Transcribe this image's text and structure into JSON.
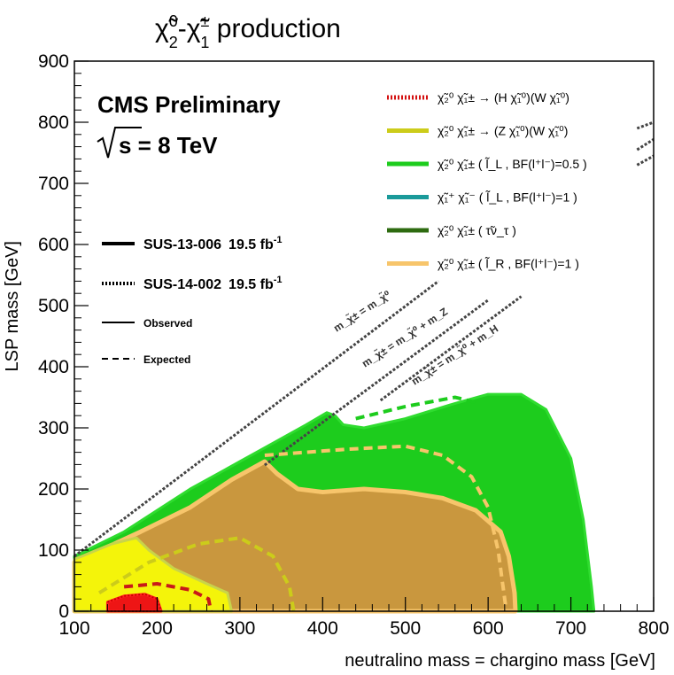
{
  "chart_data": {
    "type": "area",
    "title": "χ̃₂⁰-χ̃₁± production",
    "title_main": "χ̃",
    "title_sup1": "0",
    "title_sub1": "2",
    "title_dash": "-",
    "title_sup2": "±",
    "title_sub2": "1",
    "title_rest": " production",
    "xlabel": "neutralino mass = chargino mass [GeV]",
    "ylabel": "LSP mass [GeV]",
    "xlim": [
      100,
      800
    ],
    "ylim": [
      0,
      900
    ],
    "xticks": [
      100,
      200,
      300,
      400,
      500,
      600,
      700,
      800
    ],
    "yticks": [
      0,
      100,
      200,
      300,
      400,
      500,
      600,
      700,
      800,
      900
    ],
    "grid": false,
    "annotations": {
      "experiment": "CMS Preliminary",
      "energy": "√s = 8 TeV",
      "energy_s": "s = 8 TeV",
      "analyses": [
        {
          "name": "SUS-13-006",
          "lumi": "19.5 fb",
          "lumi_sup": "-1",
          "style": "solid"
        },
        {
          "name": "SUS-14-002",
          "lumi": "19.5 fb",
          "lumi_sup": "-1",
          "style": "dotted"
        }
      ],
      "line_styles": [
        {
          "label": "Observed",
          "style": "solid"
        },
        {
          "label": "Expected",
          "style": "dashed"
        }
      ],
      "diagonals": [
        {
          "label": "m_χ̃± = m_χ̃⁰",
          "offset": 0
        },
        {
          "label": "m_χ̃± = m_χ̃⁰ + m_Z",
          "offset": 91
        },
        {
          "label": "m_χ̃± = m_χ̃⁰ + m_H",
          "offset": 125
        }
      ]
    },
    "legend": {
      "position": "top-right",
      "entries": [
        {
          "label": "χ̃₂⁰ χ̃₁± → (H χ̃₁⁰)(W χ̃₁⁰)",
          "color": "#d41111",
          "style": "dotted"
        },
        {
          "label": "χ̃₂⁰ χ̃₁± → (Z χ̃₁⁰)(W χ̃₁⁰)",
          "color": "#cccc1a",
          "style": "solid"
        },
        {
          "label": "χ̃₂⁰ χ̃₁± ( l̃_L , BF(l⁺l⁻)=0.5 )",
          "color": "#1dcc1d",
          "style": "solid"
        },
        {
          "label": "χ̃₁⁺ χ̃₁⁻ ( l̃_L , BF(l⁺l⁻)=1 )",
          "color": "#1a9a9a",
          "style": "solid"
        },
        {
          "label": "χ̃₂⁰ χ̃₁± ( τ̃ν_τ )",
          "color": "#2e6b10",
          "style": "solid"
        },
        {
          "label": "χ̃₂⁰ χ̃₁± ( l̃_R , BF(l⁺l⁻)=1 )",
          "color": "#f7c56b",
          "style": "solid"
        }
      ]
    },
    "series": [
      {
        "name": "χ̃₂⁰ χ̃₁± ( l̃_L , BF(l⁺l⁻)=0.5 )",
        "color": "#1dcc1d",
        "kind": "observed-region",
        "points": [
          [
            100,
            90
          ],
          [
            160,
            130
          ],
          [
            240,
            200
          ],
          [
            300,
            245
          ],
          [
            340,
            275
          ],
          [
            380,
            305
          ],
          [
            405,
            325
          ],
          [
            415,
            320
          ],
          [
            425,
            305
          ],
          [
            450,
            300
          ],
          [
            500,
            315
          ],
          [
            560,
            340
          ],
          [
            600,
            355
          ],
          [
            640,
            355
          ],
          [
            670,
            330
          ],
          [
            700,
            250
          ],
          [
            715,
            150
          ],
          [
            725,
            40
          ],
          [
            728,
            0
          ],
          [
            100,
            0
          ]
        ]
      },
      {
        "name": "χ̃₂⁰ χ̃₁± ( l̃_R , BF(l⁺l⁻)=1 )",
        "color": "#c9973e",
        "kind": "observed-region",
        "points": [
          [
            100,
            80
          ],
          [
            180,
            130
          ],
          [
            240,
            170
          ],
          [
            290,
            215
          ],
          [
            330,
            245
          ],
          [
            345,
            225
          ],
          [
            370,
            200
          ],
          [
            400,
            195
          ],
          [
            450,
            200
          ],
          [
            500,
            195
          ],
          [
            545,
            185
          ],
          [
            585,
            165
          ],
          [
            615,
            130
          ],
          [
            625,
            90
          ],
          [
            632,
            30
          ],
          [
            633,
            0
          ],
          [
            100,
            0
          ]
        ]
      },
      {
        "name": "χ̃₂⁰ χ̃₁± → (Z χ̃₁⁰)(W χ̃₁⁰)",
        "color": "#f4f40a",
        "kind": "observed-region",
        "points": [
          [
            100,
            85
          ],
          [
            145,
            110
          ],
          [
            175,
            120
          ],
          [
            190,
            100
          ],
          [
            220,
            70
          ],
          [
            260,
            45
          ],
          [
            285,
            30
          ],
          [
            290,
            0
          ],
          [
            100,
            0
          ]
        ]
      },
      {
        "name": "χ̃₂⁰ χ̃₁± → (H χ̃₁⁰)(W χ̃₁⁰)",
        "color": "#ee1515",
        "kind": "observed-region",
        "points": [
          [
            140,
            15
          ],
          [
            160,
            25
          ],
          [
            185,
            28
          ],
          [
            200,
            20
          ],
          [
            205,
            0
          ],
          [
            140,
            0
          ]
        ]
      }
    ],
    "expected_curves": [
      {
        "name": "Z-expected",
        "color": "#cccc1a",
        "points": [
          [
            130,
            30
          ],
          [
            190,
            80
          ],
          [
            250,
            110
          ],
          [
            300,
            120
          ],
          [
            340,
            90
          ],
          [
            360,
            40
          ],
          [
            365,
            0
          ]
        ]
      },
      {
        "name": "H-expected",
        "color": "#c81919",
        "points": [
          [
            160,
            40
          ],
          [
            200,
            45
          ],
          [
            240,
            35
          ],
          [
            262,
            20
          ],
          [
            265,
            0
          ]
        ]
      },
      {
        "name": "lR-expected",
        "color": "#f7c56b",
        "points": [
          [
            330,
            255
          ],
          [
            430,
            265
          ],
          [
            500,
            270
          ],
          [
            545,
            255
          ],
          [
            580,
            220
          ],
          [
            600,
            170
          ],
          [
            612,
            100
          ],
          [
            622,
            0
          ]
        ]
      },
      {
        "name": "lL-expected",
        "color": "#1dcc1d",
        "points": [
          [
            440,
            315
          ],
          [
            500,
            335
          ],
          [
            560,
            350
          ],
          [
            590,
            340
          ]
        ]
      }
    ]
  }
}
